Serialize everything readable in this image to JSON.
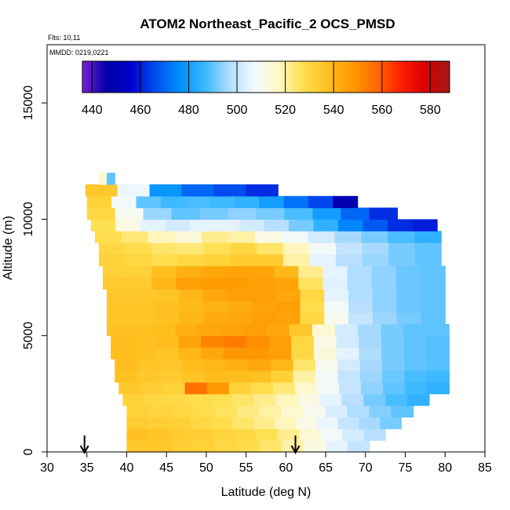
{
  "chart_data": {
    "type": "heatmap",
    "title": "ATOM2 Northeast_Pacific_2 OCS_PMSD",
    "flights_text": "Flts: 10,11",
    "dates_text": "MMDD: 0219,0221",
    "xlabel": "Latitude (deg N)",
    "ylabel": "Altitude (m)",
    "xlim": [
      30,
      85
    ],
    "ylim": [
      0,
      17500
    ],
    "x_ticks": [
      "30",
      "35",
      "40",
      "45",
      "50",
      "55",
      "60",
      "65",
      "70",
      "75",
      "80",
      "85"
    ],
    "y_ticks": [
      "0",
      "5000",
      "10000",
      "15000"
    ],
    "colorbar": {
      "min": 436,
      "max": 588,
      "ticks": [
        "440",
        "460",
        "480",
        "500",
        "520",
        "540",
        "560",
        "580"
      ],
      "colors": [
        "#7b1fd8",
        "#0000a8",
        "#0000cd",
        "#0050f0",
        "#0090ff",
        "#38b8ff",
        "#b0dcff",
        "#f2f9ff",
        "#fff8c8",
        "#ffe050",
        "#ffc020",
        "#ff9a00",
        "#ff6a00",
        "#ff2000",
        "#d80000",
        "#a01818"
      ]
    },
    "arrows_lat": [
      34.7,
      61.2
    ],
    "rows": [
      {
        "y0": 0,
        "y1": 500,
        "lat0": 40.0,
        "lat1": 70.5,
        "values": [
          535,
          535,
          533,
          532,
          530,
          528,
          525,
          520,
          512,
          505,
          500
        ]
      },
      {
        "y0": 500,
        "y1": 1000,
        "lat0": 40.0,
        "lat1": 72.5,
        "values": [
          537,
          536,
          534,
          533,
          531,
          530,
          527,
          522,
          515,
          508,
          502,
          498
        ]
      },
      {
        "y0": 1000,
        "y1": 1500,
        "lat0": 40.0,
        "lat1": 74.5,
        "values": [
          534,
          533,
          532,
          530,
          528,
          525,
          522,
          518,
          512,
          506,
          500,
          496,
          492
        ]
      },
      {
        "y0": 1500,
        "y1": 2000,
        "lat0": 40.0,
        "lat1": 76.0,
        "values": [
          532,
          531,
          530,
          528,
          526,
          523,
          520,
          516,
          510,
          503,
          497,
          493,
          490
        ]
      },
      {
        "y0": 2000,
        "y1": 2500,
        "lat0": 39.5,
        "lat1": 78.0,
        "values": [
          532,
          530,
          529,
          528,
          527,
          525,
          522,
          518,
          512,
          505,
          498,
          492,
          488,
          485
        ]
      },
      {
        "y0": 2500,
        "y1": 3000,
        "lat0": 39.0,
        "lat1": 80.5,
        "values": [
          535,
          533,
          532,
          556,
          548,
          532,
          528,
          524,
          516,
          508,
          500,
          494,
          490,
          487,
          485
        ]
      },
      {
        "y0": 3000,
        "y1": 3500,
        "lat0": 38.5,
        "lat1": 80.5,
        "values": [
          537,
          535,
          534,
          536,
          538,
          538,
          537,
          532,
          520,
          508,
          500,
          495,
          491,
          488,
          487
        ]
      },
      {
        "y0": 3500,
        "y1": 4000,
        "lat0": 38.5,
        "lat1": 80.5,
        "values": [
          538,
          536,
          535,
          538,
          540,
          542,
          544,
          540,
          525,
          510,
          502,
          496,
          492,
          490,
          489
        ]
      },
      {
        "y0": 4000,
        "y1": 4500,
        "lat0": 38.0,
        "lat1": 80.5,
        "values": [
          538,
          537,
          536,
          540,
          544,
          548,
          548,
          546,
          530,
          514,
          505,
          497,
          492,
          490,
          489
        ]
      },
      {
        "y0": 4500,
        "y1": 5000,
        "lat0": 38.0,
        "lat1": 80.5,
        "values": [
          538,
          537,
          538,
          545,
          552,
          554,
          550,
          546,
          530,
          512,
          502,
          496,
          492,
          490,
          489
        ]
      },
      {
        "y0": 5000,
        "y1": 5500,
        "lat0": 37.5,
        "lat1": 80.5,
        "values": [
          537,
          537,
          538,
          542,
          544,
          545,
          546,
          544,
          535,
          515,
          502,
          496,
          492,
          490,
          490
        ]
      },
      {
        "y0": 5500,
        "y1": 6000,
        "lat0": 37.5,
        "lat1": 80.0,
        "values": [
          536,
          536,
          537,
          540,
          543,
          544,
          546,
          545,
          530,
          510,
          500,
          495,
          492,
          490
        ]
      },
      {
        "y0": 6000,
        "y1": 6500,
        "lat0": 37.5,
        "lat1": 80.0,
        "values": [
          536,
          536,
          537,
          539,
          541,
          543,
          545,
          546,
          528,
          508,
          498,
          494,
          491,
          490
        ]
      },
      {
        "y0": 6500,
        "y1": 7000,
        "lat0": 37.5,
        "lat1": 80.0,
        "values": [
          535,
          535,
          536,
          540,
          544,
          546,
          546,
          544,
          530,
          505,
          497,
          494,
          491,
          490
        ]
      },
      {
        "y0": 7000,
        "y1": 7500,
        "lat0": 37.0,
        "lat1": 80.0,
        "values": [
          534,
          534,
          540,
          546,
          547,
          547,
          546,
          545,
          526,
          504,
          497,
          494,
          491,
          490
        ]
      },
      {
        "y0": 7500,
        "y1": 8000,
        "lat0": 37.0,
        "lat1": 80.0,
        "values": [
          532,
          532,
          538,
          542,
          544,
          545,
          545,
          540,
          522,
          505,
          497,
          494,
          491,
          490
        ]
      },
      {
        "y0": 8000,
        "y1": 8500,
        "lat0": 36.5,
        "lat1": 79.5,
        "values": [
          532,
          530,
          528,
          530,
          532,
          534,
          534,
          520,
          505,
          498,
          495,
          492,
          490
        ]
      },
      {
        "y0": 8500,
        "y1": 9000,
        "lat0": 36.5,
        "lat1": 79.5,
        "values": [
          530,
          528,
          525,
          524,
          527,
          530,
          525,
          518,
          508,
          500,
          496,
          492,
          490
        ]
      },
      {
        "y0": 9000,
        "y1": 9500,
        "lat0": 36.0,
        "lat1": 79.5,
        "values": [
          528,
          524,
          518,
          514,
          522,
          520,
          512,
          508,
          502,
          496,
          492,
          488,
          485
        ]
      },
      {
        "y0": 9500,
        "y1": 10000,
        "lat0": 35.5,
        "lat1": 79.0,
        "values": [
          527,
          512,
          505,
          502,
          505,
          505,
          502,
          498,
          492,
          485,
          475,
          468,
          462,
          460
        ]
      },
      {
        "y0": 10000,
        "y1": 10500,
        "lat0": 35.0,
        "lat1": 74.0,
        "values": [
          530,
          510,
          495,
          490,
          492,
          494,
          492,
          488,
          480,
          470,
          462
        ]
      },
      {
        "y0": 10500,
        "y1": 11000,
        "lat0": 35.0,
        "lat1": 69.0,
        "values": [
          532,
          508,
          490,
          487,
          488,
          487,
          485,
          480,
          472,
          465,
          448
        ]
      },
      {
        "y0": 11000,
        "y1": 11500,
        "lat0": 34.8,
        "lat1": 59.0,
        "values": [
          535,
          506,
          478,
          470,
          466,
          462
        ]
      },
      {
        "y0": 11500,
        "y1": 12000,
        "lat0": 36.5,
        "lat1": 38.5,
        "values": [
          515,
          490
        ]
      }
    ]
  }
}
